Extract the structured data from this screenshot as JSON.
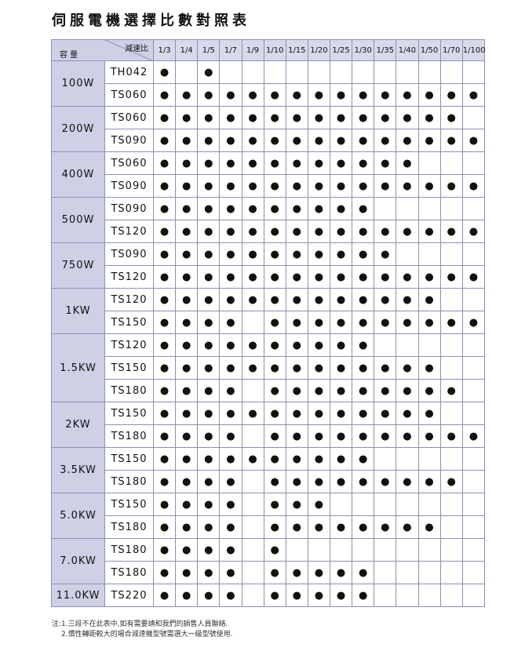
{
  "title": "伺服電機選擇比數對照表",
  "table": {
    "corner_top": "減速比",
    "corner_bottom": "容 量",
    "ratios": [
      "1/3",
      "1/4",
      "1/5",
      "1/7",
      "1/9",
      "1/10",
      "1/15",
      "1/20",
      "1/25",
      "1/30",
      "1/35",
      "1/40",
      "1/50",
      "1/70",
      "1/100"
    ],
    "groups": [
      {
        "capacity": "100W",
        "rows": [
          {
            "model": "TH042",
            "cells": [
              "●",
              null,
              "●",
              null,
              null,
              null,
              null,
              null,
              null,
              null,
              null,
              null,
              null,
              null,
              null
            ]
          },
          {
            "model": "TS060",
            "cells": [
              "●",
              "●",
              "●",
              "●",
              "●",
              "●",
              "●",
              "●",
              "●",
              "●",
              "●",
              "●",
              "●",
              "●",
              "●"
            ]
          }
        ]
      },
      {
        "capacity": "200W",
        "rows": [
          {
            "model": "TS060",
            "cells": [
              "●",
              "●",
              "●",
              "●",
              "●",
              "●",
              "●",
              "●",
              "●",
              "●",
              "●",
              "●",
              "●",
              "●",
              null
            ]
          },
          {
            "model": "TS090",
            "cells": [
              "●",
              "●",
              "●",
              "●",
              "●",
              "●",
              "●",
              "●",
              "●",
              "●",
              "●",
              "●",
              "●",
              "●",
              "●"
            ]
          }
        ]
      },
      {
        "capacity": "400W",
        "rows": [
          {
            "model": "TS060",
            "cells": [
              "●",
              "●",
              "●",
              "●",
              "●",
              "●",
              "●",
              "●",
              "●",
              "●",
              "●",
              "●",
              null,
              null,
              null
            ]
          },
          {
            "model": "TS090",
            "cells": [
              "●",
              "●",
              "●",
              "●",
              "●",
              "●",
              "●",
              "●",
              "●",
              "●",
              "●",
              "●",
              "●",
              "●",
              "●"
            ]
          }
        ]
      },
      {
        "capacity": "500W",
        "rows": [
          {
            "model": "TS090",
            "cells": [
              "●",
              "●",
              "●",
              "●",
              "●",
              "●",
              "●",
              "●",
              "●",
              "●",
              null,
              null,
              null,
              null,
              null
            ]
          },
          {
            "model": "TS120",
            "cells": [
              "●",
              "●",
              "●",
              "●",
              "●",
              "●",
              "●",
              "●",
              "●",
              "●",
              "●",
              "●",
              "●",
              "●",
              "●"
            ]
          }
        ]
      },
      {
        "capacity": "750W",
        "rows": [
          {
            "model": "TS090",
            "cells": [
              "●",
              "●",
              "●",
              "●",
              "●",
              "●",
              "●",
              "●",
              "●",
              "●",
              "●",
              null,
              null,
              null,
              null
            ]
          },
          {
            "model": "TS120",
            "cells": [
              "●",
              "●",
              "●",
              "●",
              "●",
              "●",
              "●",
              "●",
              "●",
              "●",
              "●",
              "●",
              "●",
              "●",
              "●"
            ]
          }
        ]
      },
      {
        "capacity": "1KW",
        "rows": [
          {
            "model": "TS120",
            "cells": [
              "●",
              "●",
              "●",
              "●",
              "●",
              "●",
              "●",
              "●",
              "●",
              "●",
              "●",
              "●",
              "●",
              null,
              null
            ]
          },
          {
            "model": "TS150",
            "cells": [
              "●",
              "●",
              "●",
              "●",
              null,
              "●",
              "●",
              "●",
              "●",
              "●",
              "●",
              "●",
              "●",
              "●",
              "●"
            ]
          }
        ]
      },
      {
        "capacity": "1.5KW",
        "rows": [
          {
            "model": "TS120",
            "cells": [
              "●",
              "●",
              "●",
              "●",
              "●",
              "●",
              "●",
              "●",
              "●",
              "●",
              null,
              null,
              null,
              null,
              null
            ]
          },
          {
            "model": "TS150",
            "cells": [
              "●",
              "●",
              "●",
              "●",
              "●",
              "●",
              "●",
              "●",
              "●",
              "●",
              "●",
              "●",
              "●",
              null,
              null
            ]
          },
          {
            "model": "TS180",
            "cells": [
              "●",
              "●",
              "●",
              "●",
              null,
              "●",
              "●",
              "●",
              "●",
              "●",
              "●",
              "●",
              "●",
              "●",
              null
            ]
          }
        ]
      },
      {
        "capacity": "2KW",
        "rows": [
          {
            "model": "TS150",
            "cells": [
              "●",
              "●",
              "●",
              "●",
              "●",
              "●",
              "●",
              "●",
              "●",
              "●",
              "●",
              "●",
              "●",
              null,
              null
            ]
          },
          {
            "model": "TS180",
            "cells": [
              "●",
              "●",
              "●",
              "●",
              null,
              "●",
              "●",
              "●",
              "●",
              "●",
              "●",
              "●",
              "●",
              "●",
              "●"
            ]
          }
        ]
      },
      {
        "capacity": "3.5KW",
        "rows": [
          {
            "model": "TS150",
            "cells": [
              "●",
              "●",
              "●",
              "●",
              "●",
              "●",
              "●",
              "●",
              "●",
              "●",
              null,
              null,
              null,
              null,
              null
            ]
          },
          {
            "model": "TS180",
            "cells": [
              "●",
              "●",
              "●",
              "●",
              null,
              "●",
              "●",
              "●",
              "●",
              "●",
              "●",
              "●",
              "●",
              "●",
              null
            ]
          }
        ]
      },
      {
        "capacity": "5.0KW",
        "rows": [
          {
            "model": "TS150",
            "cells": [
              "●",
              "●",
              "●",
              "●",
              null,
              "●",
              "●",
              "●",
              null,
              null,
              null,
              null,
              null,
              null,
              null
            ]
          },
          {
            "model": "TS180",
            "cells": [
              "●",
              "●",
              "●",
              "●",
              null,
              "●",
              "●",
              "●",
              "●",
              "●",
              "●",
              "●",
              "●",
              null,
              null
            ]
          }
        ]
      },
      {
        "capacity": "7.0KW",
        "rows": [
          {
            "model": "TS180",
            "cells": [
              "●",
              "●",
              "●",
              "●",
              null,
              "●",
              null,
              null,
              null,
              null,
              null,
              null,
              null,
              null,
              null
            ]
          },
          {
            "model": "TS180",
            "cells": [
              "●",
              "●",
              "●",
              "●",
              null,
              "●",
              "●",
              "●",
              "●",
              "●",
              null,
              null,
              null,
              null,
              null
            ]
          }
        ]
      },
      {
        "capacity": "11.0KW",
        "rows": [
          {
            "model": "TS220",
            "cells": [
              "●",
              "●",
              "●",
              "●",
              null,
              "●",
              "●",
              "●",
              "●",
              "●",
              null,
              null,
              null,
              null,
              null
            ]
          }
        ]
      }
    ]
  },
  "notes": [
    "注:1.三段不在此表中,如有需要請和我們的銷售人員聯絡.",
    "2.慣性轉距較大的場合減速機型號需選大一級型號使用."
  ]
}
